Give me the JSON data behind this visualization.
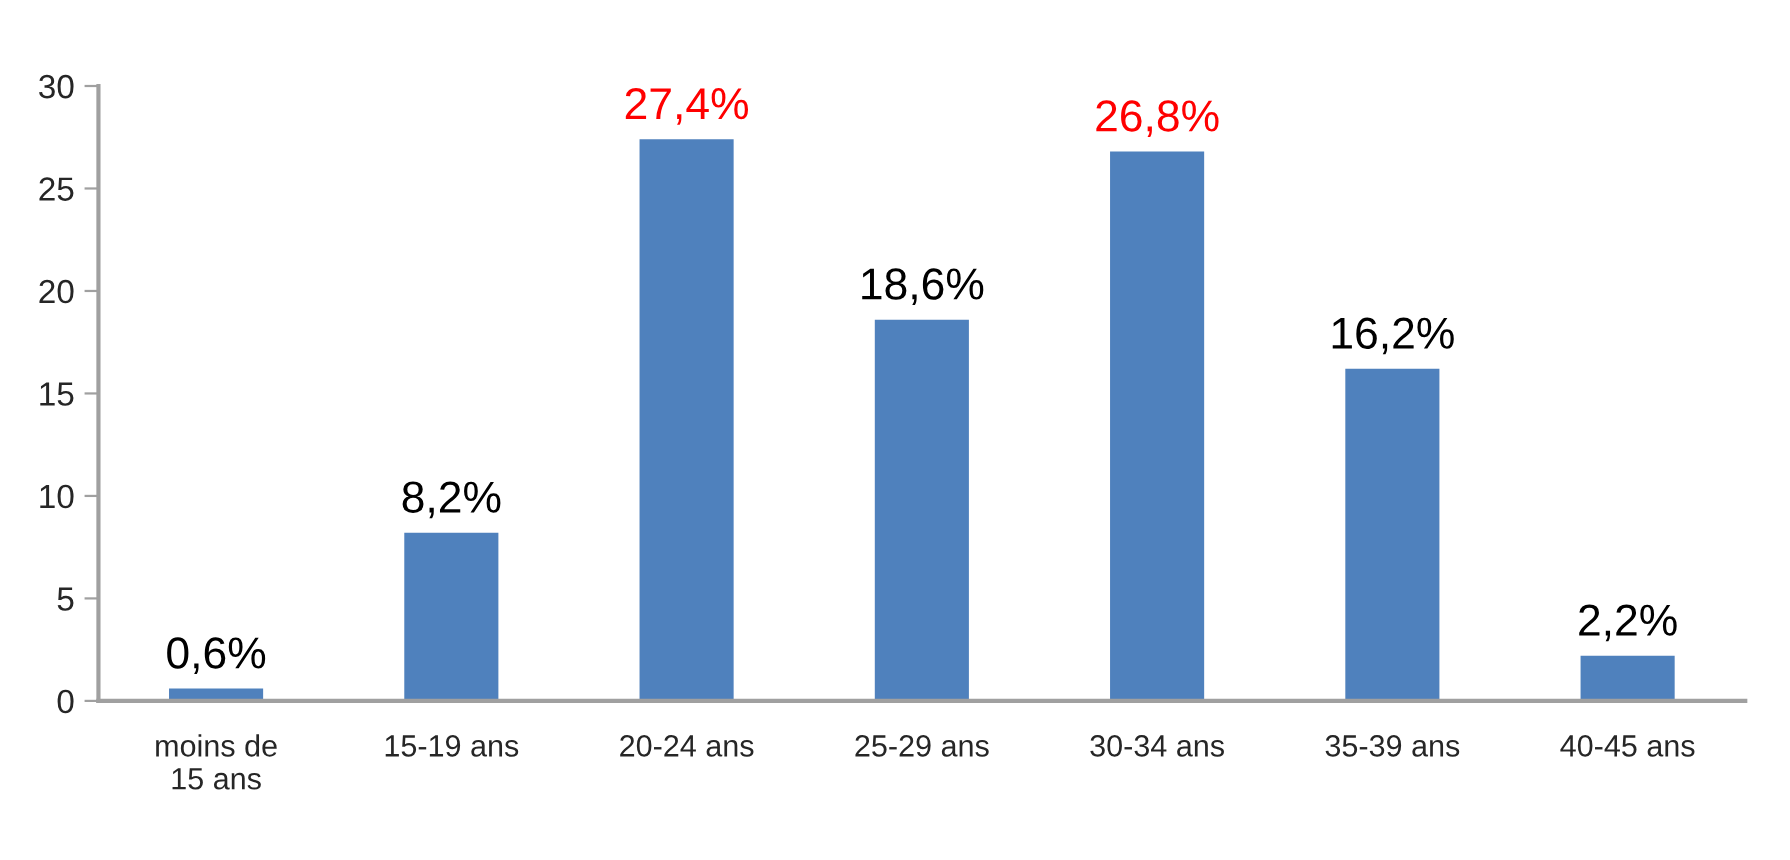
{
  "chart_data": {
    "type": "bar",
    "categories": [
      "moins de\n15 ans",
      "15-19 ans",
      "20-24 ans",
      "25-29 ans",
      "30-34 ans",
      "35-39 ans",
      "40-45 ans"
    ],
    "values": [
      0.6,
      8.2,
      27.4,
      18.6,
      26.8,
      16.2,
      2.2
    ],
    "value_labels": [
      "0,6%",
      "8,2%",
      null,
      "18,6%",
      null,
      "16,2%",
      "2,2%"
    ],
    "annotations": [
      {
        "text": "27,4%",
        "x": "20-24 ans",
        "y": 27.4
      },
      {
        "text": "26,8%",
        "x": "30-34 ans",
        "y": 26.8
      }
    ],
    "color": "#4f81bd",
    "ylim": [
      0,
      30
    ],
    "yticks": [
      0,
      5,
      10,
      15,
      20,
      25,
      30
    ],
    "grid": false,
    "legend": false
  }
}
